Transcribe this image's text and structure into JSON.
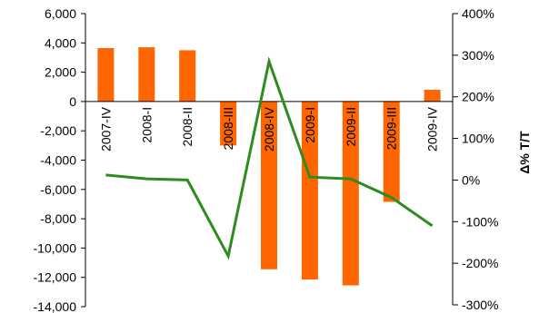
{
  "chart_data": {
    "type": "bar",
    "categories": [
      "2007-IV",
      "2008-I",
      "2008-II",
      "2008-III",
      "2008-IV",
      "2009-I",
      "2009-II",
      "2009-III",
      "2009-IV"
    ],
    "series": [
      {
        "type": "bar",
        "axis": "left",
        "color": "#FF6600",
        "values": [
          3650,
          3700,
          3500,
          -3000,
          -11450,
          -12150,
          -12550,
          -6850,
          800
        ]
      },
      {
        "type": "line",
        "axis": "right",
        "color": "#2E8B1E",
        "values": [
          12,
          3,
          0,
          -183,
          285,
          7,
          3,
          -42,
          -110
        ]
      }
    ],
    "left_axis": {
      "ylim": [
        -14000,
        6000
      ],
      "ticks": [
        6000,
        4000,
        2000,
        0,
        -2000,
        -4000,
        -6000,
        -8000,
        -10000,
        -12000,
        -14000
      ],
      "tick_labels": [
        "6,000",
        "4,000",
        "2,000",
        "0",
        "-2,000",
        "-4,000",
        "-6,000",
        "-8,000",
        "-10,000",
        "-12,000",
        "-14,000"
      ]
    },
    "right_axis": {
      "label": "Δ% T/T",
      "ylim": [
        -300,
        400
      ],
      "ticks": [
        400,
        300,
        200,
        100,
        0,
        -100,
        -200,
        -300
      ],
      "tick_labels": [
        "400%",
        "300%",
        "200%",
        "100%",
        "0%",
        "-100%",
        "-200%",
        "-300%"
      ]
    },
    "grid": false,
    "legend": "none"
  }
}
